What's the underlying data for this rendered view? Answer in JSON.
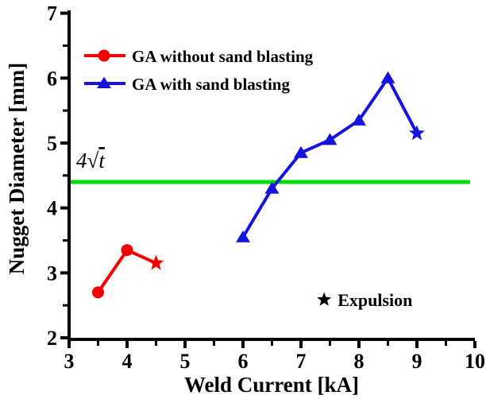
{
  "chart_data": {
    "type": "line",
    "title": "",
    "xlabel": "Weld Current [kA]",
    "ylabel": "Nugget Diameter [mm]",
    "xlim": [
      3,
      10
    ],
    "ylim": [
      2,
      7
    ],
    "x_major_ticks": [
      3,
      4,
      5,
      6,
      7,
      8,
      9,
      10
    ],
    "y_major_ticks": [
      2,
      3,
      4,
      5,
      6,
      7
    ],
    "minor_tick_step": 0.5,
    "grid": "off",
    "legend_position": "top-left-inside",
    "axis_color": "#000000",
    "series": [
      {
        "name": "GA without sand blasting",
        "color": "#f40000",
        "marker": "circle",
        "points": [
          {
            "x": 3.5,
            "y": 2.7,
            "marker": "circle"
          },
          {
            "x": 4.0,
            "y": 3.35,
            "marker": "circle"
          },
          {
            "x": 4.5,
            "y": 3.15,
            "marker": "star",
            "expulsion": true
          }
        ]
      },
      {
        "name": "GA with sand blasting",
        "color": "#1414dd",
        "marker": "triangle",
        "points": [
          {
            "x": 6.0,
            "y": 3.55,
            "marker": "triangle"
          },
          {
            "x": 6.5,
            "y": 4.3,
            "marker": "triangle"
          },
          {
            "x": 7.0,
            "y": 4.85,
            "marker": "triangle"
          },
          {
            "x": 7.5,
            "y": 5.05,
            "marker": "triangle"
          },
          {
            "x": 8.0,
            "y": 5.35,
            "marker": "triangle"
          },
          {
            "x": 8.5,
            "y": 6.0,
            "marker": "triangle"
          },
          {
            "x": 9.0,
            "y": 5.15,
            "marker": "star",
            "expulsion": true
          }
        ]
      }
    ],
    "reference_line": {
      "value": 4.4,
      "color": "#00dd00",
      "label": "4√t",
      "label_prefix": "4√",
      "label_radicand": "t"
    },
    "annotations": [
      {
        "symbol": "★",
        "symbol_name": "star",
        "text": "Expulsion",
        "x": 7.4,
        "y": 2.6,
        "color": "#000000"
      }
    ]
  }
}
